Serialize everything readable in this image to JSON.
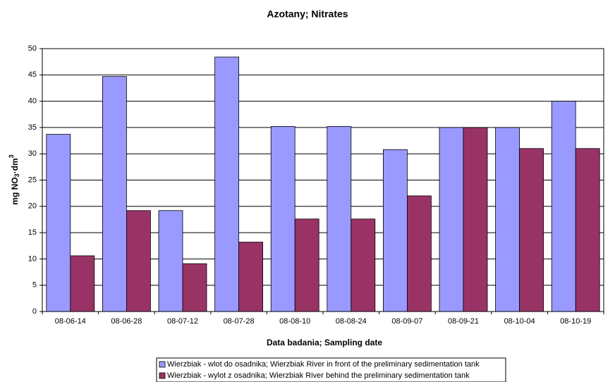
{
  "chart_data": {
    "type": "bar",
    "title": "Azotany; Nitrates",
    "x_label": "Data badania; Sampling date",
    "y_label": {
      "text": "mg NO",
      "sub": "3",
      "mid": "·dm",
      "sup": "3"
    },
    "categories": [
      "08-06-14",
      "08-06-28",
      "08-07-12",
      "08-07-28",
      "08-08-10",
      "08-08-24",
      "08-09-07",
      "08-09-21",
      "08-10-04",
      "08-10-19"
    ],
    "series": [
      {
        "name": "Wierzbiak - wlot do osadnika; Wierzbiak River in front of the preliminary sedimentation tank",
        "color": "#9999ff",
        "values": [
          33.7,
          44.7,
          19.2,
          48.4,
          35.2,
          35.2,
          30.8,
          35,
          35,
          40
        ]
      },
      {
        "name": "Wierzbiak - wylot z osadnika;  Wierzbiak River behind the preliminary sedimentation tank",
        "color": "#993366",
        "values": [
          10.6,
          19.2,
          9.1,
          13.2,
          17.6,
          17.6,
          22,
          35,
          31,
          31
        ]
      }
    ],
    "ylim": [
      0,
      50
    ],
    "yticks": [
      0,
      5,
      10,
      15,
      20,
      25,
      30,
      35,
      40,
      45,
      50
    ],
    "grid": true,
    "legend": "bottom"
  }
}
